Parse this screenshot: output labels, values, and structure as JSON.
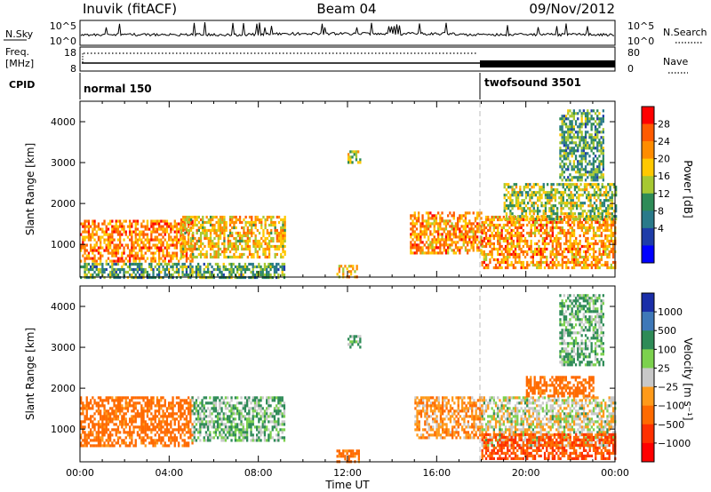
{
  "header": {
    "station": "Inuvik (fitACF)",
    "beam": "Beam 04",
    "date": "09/Nov/2012"
  },
  "noise_panel": {
    "left_label": "N.Sky",
    "right_label": "N.Search",
    "left_ticks": [
      "10^5",
      "10^0"
    ],
    "right_ticks": [
      "10^5",
      "10^0"
    ]
  },
  "freq_panel": {
    "left_label_top": "Freq.",
    "left_label_bottom": "[MHz]",
    "right_label": "Nave",
    "left_ticks": [
      "18",
      "8"
    ],
    "right_ticks": [
      "80",
      "0"
    ]
  },
  "cpid": {
    "label": "CPID",
    "modes": [
      {
        "name": "normal 150",
        "start_hour": 0
      },
      {
        "name": "twofsound 3501",
        "start_hour": 18
      }
    ]
  },
  "x_axis": {
    "label": "Time UT",
    "ticks": [
      "00:00",
      "04:00",
      "08:00",
      "12:00",
      "16:00",
      "20:00",
      "00:00"
    ],
    "range_hours": [
      0,
      24
    ]
  },
  "power_colorbar": {
    "title": "Power [dB]",
    "labels": [
      "28",
      "24",
      "20",
      "16",
      "12",
      "8",
      "4"
    ],
    "colors": [
      "#ff0000",
      "#ff5a00",
      "#ff8c00",
      "#ffc800",
      "#a6c832",
      "#2e8b57",
      "#2a7a8a",
      "#1e3ca8",
      "#0000ff"
    ]
  },
  "velocity_colorbar": {
    "title": "Velocity [m s⁻¹]",
    "labels": [
      "1000",
      "500",
      "100",
      "25",
      "−25",
      "−100",
      "−500",
      "−1000"
    ],
    "colors": [
      "#1a2ea8",
      "#3e78b8",
      "#2e8b57",
      "#7cd14e",
      "#c8c8c8",
      "#ff9a1a",
      "#ff6a00",
      "#ff3000",
      "#ff0000"
    ]
  },
  "chart_data": {
    "type": "heatmap",
    "x_unit": "hours UT",
    "y_label": "Slant Range [km]",
    "y_range": [
      200,
      4500
    ],
    "y_ticks": [
      1000,
      2000,
      3000,
      4000
    ],
    "mode_change_hour": 18,
    "power_panel": {
      "regions": [
        {
          "t": [
            0.0,
            5.0
          ],
          "r": [
            600,
            1600
          ],
          "value_db": 25
        },
        {
          "t": [
            4.5,
            9.2
          ],
          "r": [
            700,
            1700
          ],
          "value_db": 20
        },
        {
          "t": [
            0.0,
            9.2
          ],
          "r": [
            200,
            550
          ],
          "value_db": 12
        },
        {
          "t": [
            11.5,
            12.4
          ],
          "r": [
            200,
            500
          ],
          "value_db": 22
        },
        {
          "t": [
            12.0,
            12.6
          ],
          "r": [
            3000,
            3300
          ],
          "value_db": 18
        },
        {
          "t": [
            14.8,
            18.0
          ],
          "r": [
            800,
            1800
          ],
          "value_db": 24
        },
        {
          "t": [
            18.0,
            24.0
          ],
          "r": [
            400,
            1700
          ],
          "value_db": 24
        },
        {
          "t": [
            19.0,
            24.0
          ],
          "r": [
            1600,
            2500
          ],
          "value_db": 16
        },
        {
          "t": [
            21.5,
            23.5
          ],
          "r": [
            2600,
            4300
          ],
          "value_db": 12
        }
      ]
    },
    "velocity_panel": {
      "regions": [
        {
          "t": [
            0.0,
            5.0
          ],
          "r": [
            600,
            1800
          ],
          "value_ms": -150
        },
        {
          "t": [
            5.0,
            9.2
          ],
          "r": [
            700,
            1800
          ],
          "value_ms": 50
        },
        {
          "t": [
            11.5,
            12.5
          ],
          "r": [
            200,
            500
          ],
          "value_ms": -150
        },
        {
          "t": [
            12.0,
            12.6
          ],
          "r": [
            3000,
            3300
          ],
          "value_ms": 80
        },
        {
          "t": [
            15.0,
            18.0
          ],
          "r": [
            800,
            1800
          ],
          "value_ms": -80
        },
        {
          "t": [
            18.0,
            24.0
          ],
          "r": [
            600,
            1800
          ],
          "value_ms": 0
        },
        {
          "t": [
            18.0,
            24.0
          ],
          "r": [
            300,
            900
          ],
          "value_ms": -300
        },
        {
          "t": [
            20.0,
            23.0
          ],
          "r": [
            1800,
            2300
          ],
          "value_ms": -150
        },
        {
          "t": [
            21.5,
            23.5
          ],
          "r": [
            2600,
            4300
          ],
          "value_ms": 60
        }
      ]
    }
  }
}
